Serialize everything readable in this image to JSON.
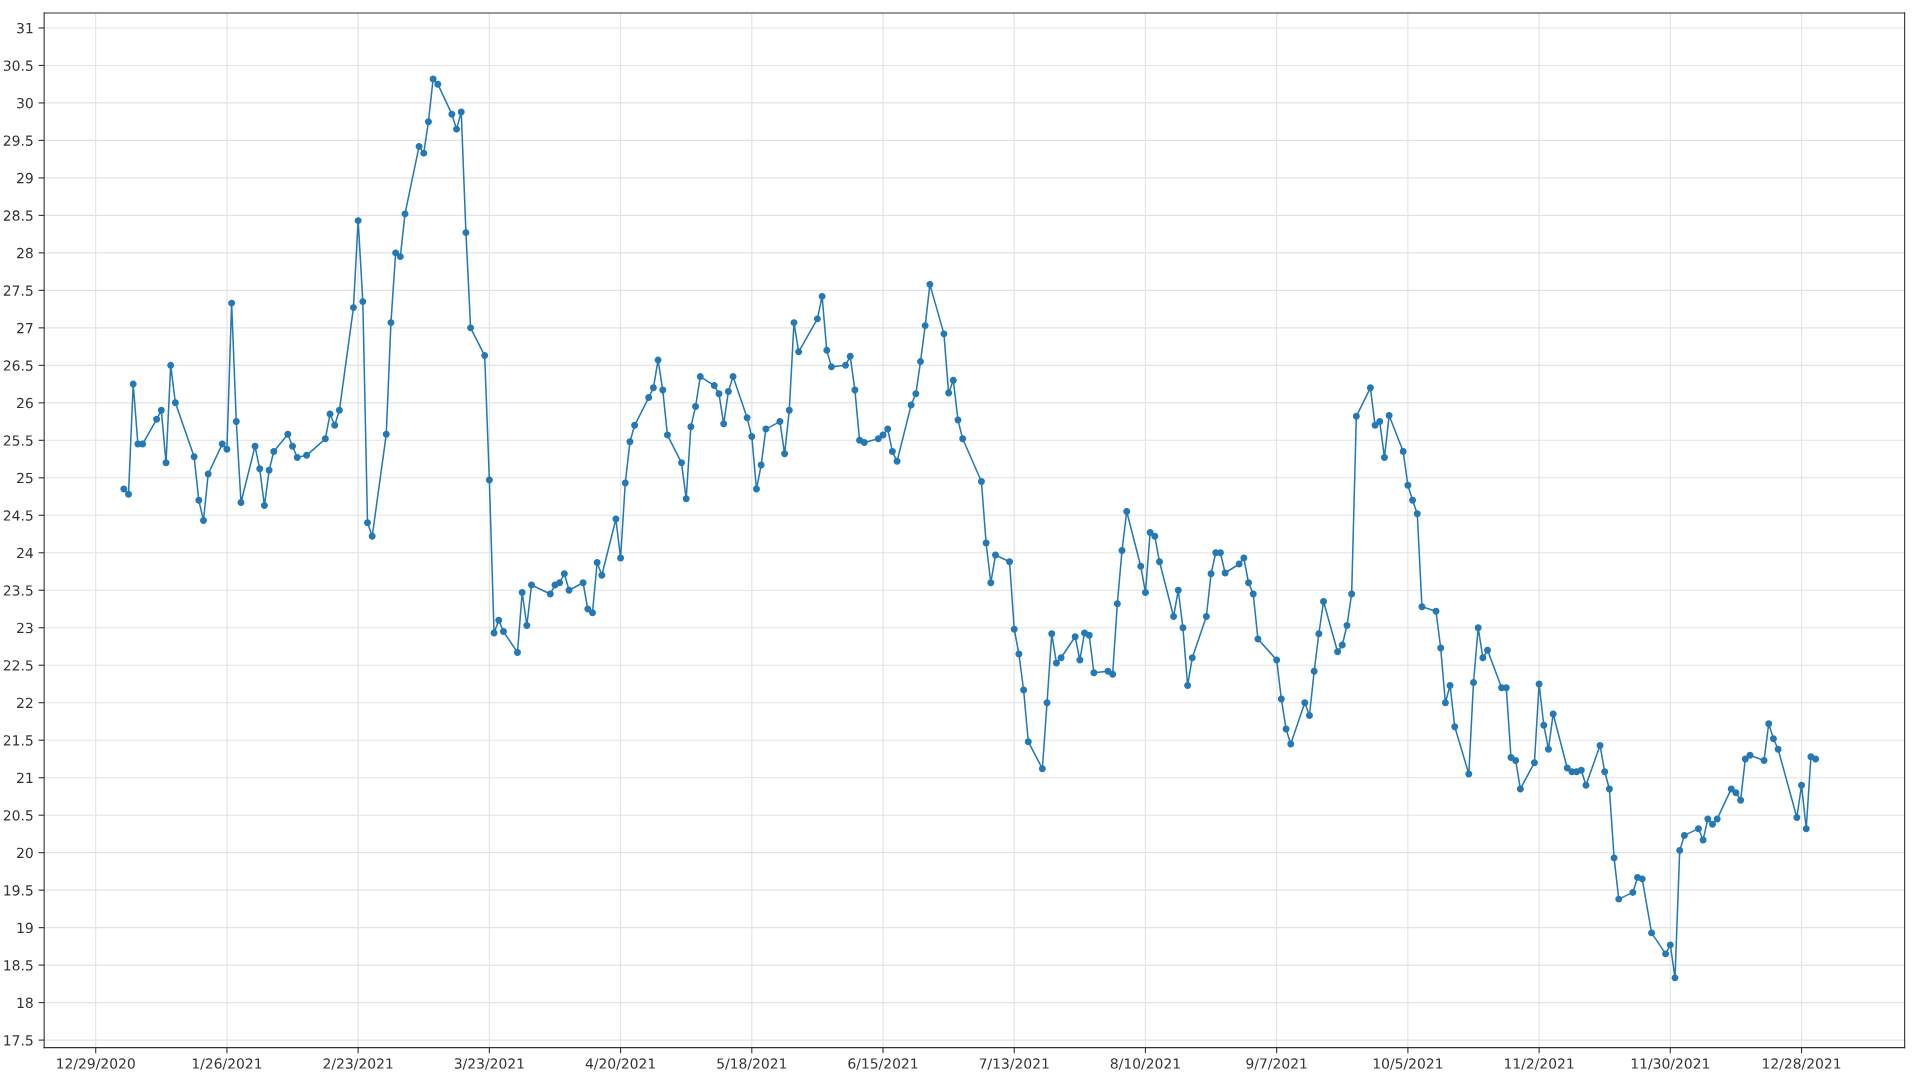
{
  "chart_data": {
    "type": "line",
    "xlim": [
      "2020-12-18",
      "2022-01-19"
    ],
    "ylim": [
      17.4,
      31.2
    ],
    "xticks": [
      {
        "value": "2020-12-29",
        "label": "12/29/2020"
      },
      {
        "value": "2021-01-26",
        "label": "1/26/2021"
      },
      {
        "value": "2021-02-23",
        "label": "2/23/2021"
      },
      {
        "value": "2021-03-23",
        "label": "3/23/2021"
      },
      {
        "value": "2021-04-20",
        "label": "4/20/2021"
      },
      {
        "value": "2021-05-18",
        "label": "5/18/2021"
      },
      {
        "value": "2021-06-15",
        "label": "6/15/2021"
      },
      {
        "value": "2021-07-13",
        "label": "7/13/2021"
      },
      {
        "value": "2021-08-10",
        "label": "8/10/2021"
      },
      {
        "value": "2021-09-07",
        "label": "9/7/2021"
      },
      {
        "value": "2021-10-05",
        "label": "10/5/2021"
      },
      {
        "value": "2021-11-02",
        "label": "11/2/2021"
      },
      {
        "value": "2021-11-30",
        "label": "11/30/2021"
      },
      {
        "value": "2021-12-28",
        "label": "12/28/2021"
      }
    ],
    "yticks": [
      17.5,
      18,
      18.5,
      19,
      19.5,
      20,
      20.5,
      21,
      21.5,
      22,
      22.5,
      23,
      23.5,
      24,
      24.5,
      25,
      25.5,
      26,
      26.5,
      27,
      27.5,
      28,
      28.5,
      29,
      29.5,
      30,
      30.5,
      31
    ],
    "grid": true,
    "marker": "circle",
    "line_style": "solid",
    "series": [
      {
        "color": "#2479b5",
        "x": [
          "2021-01-04",
          "2021-01-05",
          "2021-01-06",
          "2021-01-07",
          "2021-01-08",
          "2021-01-11",
          "2021-01-12",
          "2021-01-13",
          "2021-01-14",
          "2021-01-15",
          "2021-01-19",
          "2021-01-20",
          "2021-01-21",
          "2021-01-22",
          "2021-01-25",
          "2021-01-26",
          "2021-01-27",
          "2021-01-28",
          "2021-01-29",
          "2021-02-01",
          "2021-02-02",
          "2021-02-03",
          "2021-02-04",
          "2021-02-05",
          "2021-02-08",
          "2021-02-09",
          "2021-02-10",
          "2021-02-12",
          "2021-02-16",
          "2021-02-17",
          "2021-02-18",
          "2021-02-19",
          "2021-02-22",
          "2021-02-23",
          "2021-02-24",
          "2021-02-25",
          "2021-02-26",
          "2021-03-01",
          "2021-03-02",
          "2021-03-03",
          "2021-03-04",
          "2021-03-05",
          "2021-03-08",
          "2021-03-09",
          "2021-03-10",
          "2021-03-11",
          "2021-03-12",
          "2021-03-15",
          "2021-03-16",
          "2021-03-17",
          "2021-03-18",
          "2021-03-19",
          "2021-03-22",
          "2021-03-23",
          "2021-03-24",
          "2021-03-25",
          "2021-03-26",
          "2021-03-29",
          "2021-03-30",
          "2021-03-31",
          "2021-04-01",
          "2021-04-05",
          "2021-04-06",
          "2021-04-07",
          "2021-04-08",
          "2021-04-09",
          "2021-04-12",
          "2021-04-13",
          "2021-04-14",
          "2021-04-15",
          "2021-04-16",
          "2021-04-19",
          "2021-04-20",
          "2021-04-21",
          "2021-04-22",
          "2021-04-23",
          "2021-04-26",
          "2021-04-27",
          "2021-04-28",
          "2021-04-29",
          "2021-04-30",
          "2021-05-03",
          "2021-05-04",
          "2021-05-05",
          "2021-05-06",
          "2021-05-07",
          "2021-05-10",
          "2021-05-11",
          "2021-05-12",
          "2021-05-13",
          "2021-05-14",
          "2021-05-17",
          "2021-05-18",
          "2021-05-19",
          "2021-05-20",
          "2021-05-21",
          "2021-05-24",
          "2021-05-25",
          "2021-05-26",
          "2021-05-27",
          "2021-05-28",
          "2021-06-01",
          "2021-06-02",
          "2021-06-03",
          "2021-06-04",
          "2021-06-07",
          "2021-06-08",
          "2021-06-09",
          "2021-06-10",
          "2021-06-11",
          "2021-06-14",
          "2021-06-15",
          "2021-06-16",
          "2021-06-17",
          "2021-06-18",
          "2021-06-21",
          "2021-06-22",
          "2021-06-23",
          "2021-06-24",
          "2021-06-25",
          "2021-06-28",
          "2021-06-29",
          "2021-06-30",
          "2021-07-01",
          "2021-07-02",
          "2021-07-06",
          "2021-07-07",
          "2021-07-08",
          "2021-07-09",
          "2021-07-12",
          "2021-07-13",
          "2021-07-14",
          "2021-07-15",
          "2021-07-16",
          "2021-07-19",
          "2021-07-20",
          "2021-07-21",
          "2021-07-22",
          "2021-07-23",
          "2021-07-26",
          "2021-07-27",
          "2021-07-28",
          "2021-07-29",
          "2021-07-30",
          "2021-08-02",
          "2021-08-03",
          "2021-08-04",
          "2021-08-05",
          "2021-08-06",
          "2021-08-09",
          "2021-08-10",
          "2021-08-11",
          "2021-08-12",
          "2021-08-13",
          "2021-08-16",
          "2021-08-17",
          "2021-08-18",
          "2021-08-19",
          "2021-08-20",
          "2021-08-23",
          "2021-08-24",
          "2021-08-25",
          "2021-08-26",
          "2021-08-27",
          "2021-08-30",
          "2021-08-31",
          "2021-09-01",
          "2021-09-02",
          "2021-09-03",
          "2021-09-07",
          "2021-09-08",
          "2021-09-09",
          "2021-09-10",
          "2021-09-13",
          "2021-09-14",
          "2021-09-15",
          "2021-09-16",
          "2021-09-17",
          "2021-09-20",
          "2021-09-21",
          "2021-09-22",
          "2021-09-23",
          "2021-09-24",
          "2021-09-27",
          "2021-09-28",
          "2021-09-29",
          "2021-09-30",
          "2021-10-01",
          "2021-10-04",
          "2021-10-05",
          "2021-10-06",
          "2021-10-07",
          "2021-10-08",
          "2021-10-11",
          "2021-10-12",
          "2021-10-13",
          "2021-10-14",
          "2021-10-15",
          "2021-10-18",
          "2021-10-19",
          "2021-10-20",
          "2021-10-21",
          "2021-10-22",
          "2021-10-25",
          "2021-10-26",
          "2021-10-27",
          "2021-10-28",
          "2021-10-29",
          "2021-11-01",
          "2021-11-02",
          "2021-11-03",
          "2021-11-04",
          "2021-11-05",
          "2021-11-08",
          "2021-11-09",
          "2021-11-10",
          "2021-11-11",
          "2021-11-12",
          "2021-11-15",
          "2021-11-16",
          "2021-11-17",
          "2021-11-18",
          "2021-11-19",
          "2021-11-22",
          "2021-11-23",
          "2021-11-24",
          "2021-11-26",
          "2021-11-29",
          "2021-11-30",
          "2021-12-01",
          "2021-12-02",
          "2021-12-03",
          "2021-12-06",
          "2021-12-07",
          "2021-12-08",
          "2021-12-09",
          "2021-12-10",
          "2021-12-13",
          "2021-12-14",
          "2021-12-15",
          "2021-12-16",
          "2021-12-17",
          "2021-12-20",
          "2021-12-21",
          "2021-12-22",
          "2021-12-23",
          "2021-12-27",
          "2021-12-28",
          "2021-12-29",
          "2021-12-30",
          "2021-12-31"
        ],
        "values": [
          24.85,
          24.78,
          26.25,
          25.45,
          25.45,
          25.78,
          25.9,
          25.2,
          26.5,
          26.0,
          25.28,
          24.7,
          24.43,
          25.05,
          25.45,
          25.38,
          27.33,
          25.75,
          24.67,
          25.42,
          25.12,
          24.63,
          25.1,
          25.35,
          25.58,
          25.42,
          25.27,
          25.3,
          25.52,
          25.85,
          25.7,
          25.9,
          27.27,
          28.43,
          27.35,
          24.4,
          24.22,
          25.58,
          27.07,
          28.0,
          27.95,
          28.52,
          29.42,
          29.33,
          29.75,
          30.32,
          30.25,
          29.85,
          29.65,
          29.88,
          28.27,
          27.0,
          26.63,
          24.97,
          22.93,
          23.1,
          22.95,
          22.67,
          23.47,
          23.03,
          23.57,
          23.45,
          23.57,
          23.6,
          23.72,
          23.5,
          23.6,
          23.25,
          23.2,
          23.87,
          23.7,
          24.45,
          23.93,
          24.93,
          25.48,
          25.7,
          26.07,
          26.2,
          26.57,
          26.17,
          25.57,
          25.2,
          24.72,
          25.68,
          25.95,
          26.35,
          26.23,
          26.12,
          25.72,
          26.15,
          26.35,
          25.8,
          25.55,
          24.85,
          25.17,
          25.65,
          25.75,
          25.32,
          25.9,
          27.07,
          26.68,
          27.12,
          27.42,
          26.7,
          26.48,
          26.5,
          26.62,
          26.17,
          25.5,
          25.47,
          25.52,
          25.57,
          25.65,
          25.35,
          25.22,
          25.97,
          26.12,
          26.55,
          27.03,
          27.58,
          26.92,
          26.13,
          26.3,
          25.77,
          25.52,
          24.95,
          24.13,
          23.6,
          23.97,
          23.88,
          22.98,
          22.65,
          22.17,
          21.48,
          21.12,
          22.0,
          22.92,
          22.53,
          22.6,
          22.88,
          22.57,
          22.93,
          22.9,
          22.4,
          22.42,
          22.38,
          23.32,
          24.03,
          24.55,
          23.82,
          23.47,
          24.27,
          24.22,
          23.88,
          23.15,
          23.5,
          23.0,
          22.23,
          22.6,
          23.15,
          23.72,
          24.0,
          24.0,
          23.73,
          23.85,
          23.93,
          23.6,
          23.45,
          22.85,
          22.57,
          22.05,
          21.65,
          21.45,
          22.0,
          21.83,
          22.42,
          22.92,
          23.35,
          22.68,
          22.77,
          23.03,
          23.45,
          25.82,
          26.2,
          25.7,
          25.75,
          25.27,
          25.83,
          25.35,
          24.9,
          24.7,
          24.52,
          23.28,
          23.22,
          22.73,
          22.0,
          22.23,
          21.68,
          21.05,
          22.27,
          23.0,
          22.6,
          22.7,
          22.2,
          22.2,
          21.27,
          21.23,
          20.85,
          21.2,
          22.25,
          21.7,
          21.38,
          21.85,
          21.13,
          21.08,
          21.08,
          21.1,
          20.9,
          21.43,
          21.08,
          20.85,
          19.93,
          19.38,
          19.47,
          19.67,
          19.65,
          18.93,
          18.65,
          18.77,
          18.33,
          20.03,
          20.23,
          20.32,
          20.17,
          20.45,
          20.38,
          20.45,
          20.85,
          20.8,
          20.7,
          21.25,
          21.3,
          21.23,
          21.72,
          21.52,
          21.38,
          20.47,
          20.9,
          20.32,
          21.28,
          21.25
        ]
      }
    ]
  }
}
